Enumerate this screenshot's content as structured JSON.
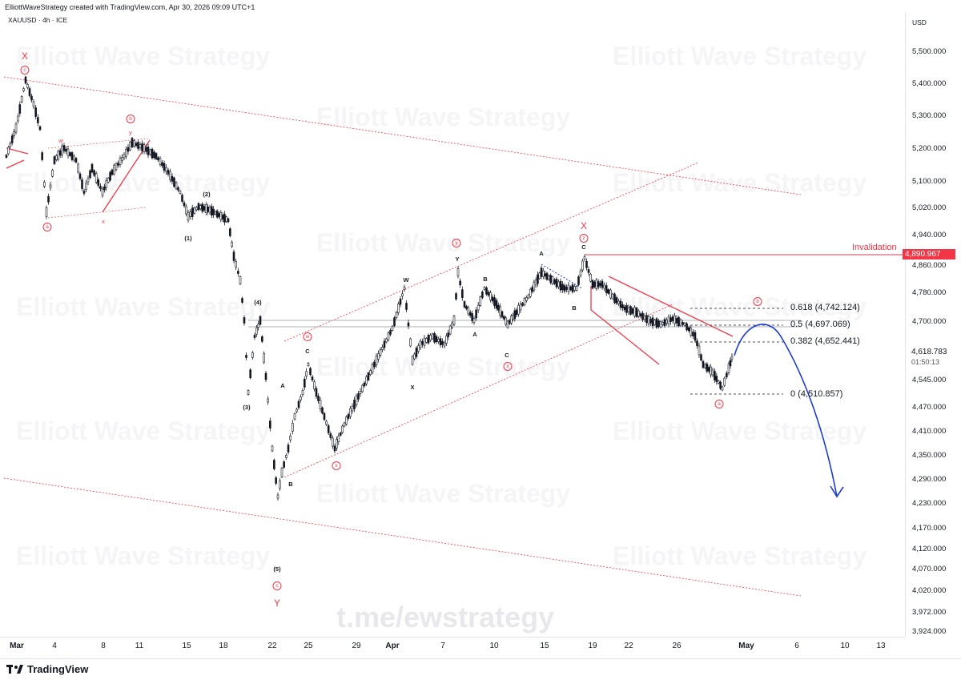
{
  "header": {
    "attribution": "ElliottWaveStrategy created with TradingView.com, Apr 30, 2026 09:09 UTC+1",
    "symbol": "XAUUSD · 4h · ICE"
  },
  "axis": {
    "currency": "USD",
    "price_labels": [
      "5,500.000",
      "5,400.000",
      "5,300.000",
      "5,200.000",
      "5,100.000",
      "5,020.000",
      "4,940.000",
      "4,860.000",
      "4,780.000",
      "4,700.000",
      "4,545.000",
      "4,470.000",
      "4,410.000",
      "4,350.000",
      "4,290.000",
      "4,230.000",
      "4,170.000",
      "4,120.000",
      "4,070.000",
      "4,020.000",
      "3,972.000",
      "3,924.000"
    ],
    "date_labels": [
      "Mar",
      "4",
      "8",
      "11",
      "15",
      "18",
      "22",
      "25",
      "29",
      "Apr",
      "7",
      "10",
      "15",
      "19",
      "22",
      "26",
      "May",
      "6",
      "10",
      "13"
    ],
    "current_price": "4,618.783",
    "countdown": "01:50:13",
    "invalidation_price": "4,890.967"
  },
  "annotations": {
    "invalidation": "Invalidation",
    "fib_618": "0.618 (4,742.124)",
    "fib_5": "0.5 (4,697.069)",
    "fib_382": "0.382 (4,652.441)",
    "fib_0": "0 (4,510.857)",
    "waves": {
      "x_top": "X",
      "c_top": "c",
      "a_low": "a",
      "w1": "w",
      "y1": "y",
      "b1": "b",
      "x1": "x",
      "p1": "(1)",
      "p2": "(2)",
      "p3": "(3)",
      "p4": "(4)",
      "p5": "(5)",
      "c5": "c",
      "y_low": "Y",
      "A1": "A",
      "B1": "B",
      "C1": "C",
      "w2": "w",
      "x2": "x",
      "W2": "W",
      "X2": "X",
      "Y2": "Y",
      "y_circ": "y",
      "x_circ": "x",
      "A2": "A",
      "B2": "B",
      "C2": "C",
      "A3": "A",
      "B3": "B",
      "C3": "C",
      "X3": "X",
      "z_circ": "z",
      "b_circ": "b",
      "a_circ": "a"
    }
  },
  "watermark": {
    "text": "Elliott Wave Strategy",
    "link": "t.me/ewstrategy"
  },
  "footer": {
    "brand": "TradingView"
  },
  "colors": {
    "up": "#131722",
    "down": "#131722",
    "accent_red": "#f23645",
    "projection_blue": "#1c3ccf"
  }
}
